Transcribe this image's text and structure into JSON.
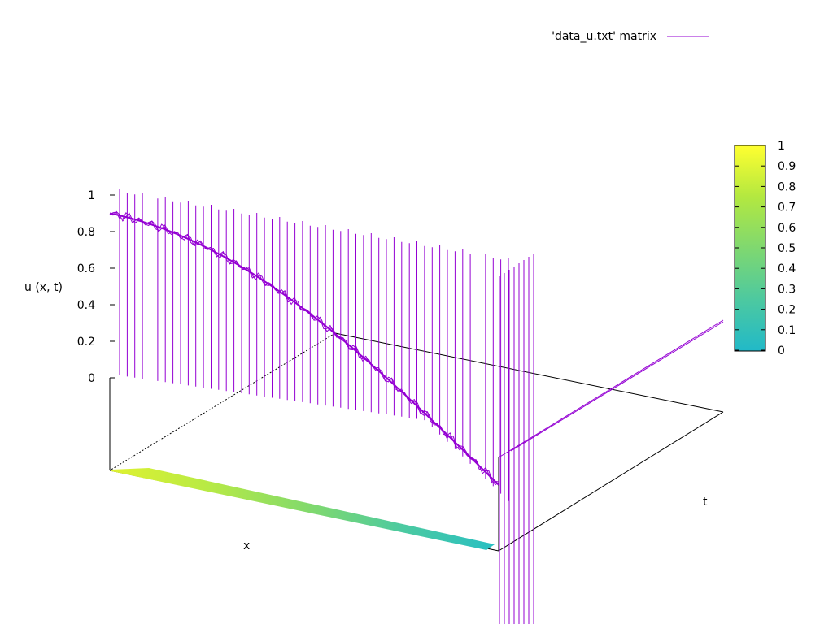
{
  "chart_data": {
    "type": "surface",
    "title": "",
    "legend": {
      "position": "top-right",
      "entries": [
        {
          "label": "'data_u.txt' matrix",
          "color": "#9400d3"
        }
      ]
    },
    "xlabel": "x",
    "ylabel": "t",
    "zlabel": "u (x, t)",
    "zlim": [
      -0.35,
      1
    ],
    "z_ticks": [
      "1",
      "0.8",
      "0.6",
      "0.4",
      "0.2",
      "0"
    ],
    "colorbar": {
      "range": [
        0,
        1
      ],
      "ticks": [
        "1",
        "0.9",
        "0.8",
        "0.7",
        "0.6",
        "0.5",
        "0.4",
        "0.3",
        "0.2",
        "0.1",
        "0"
      ],
      "palette": [
        "#21b9c8",
        "#4dc9a0",
        "#7fd870",
        "#b3e840",
        "#ffff30"
      ]
    },
    "profile": {
      "shape": "cosine",
      "u_at_x0": 0.9,
      "u_at_x1": -0.15
    },
    "series_color": "#9400d3"
  }
}
